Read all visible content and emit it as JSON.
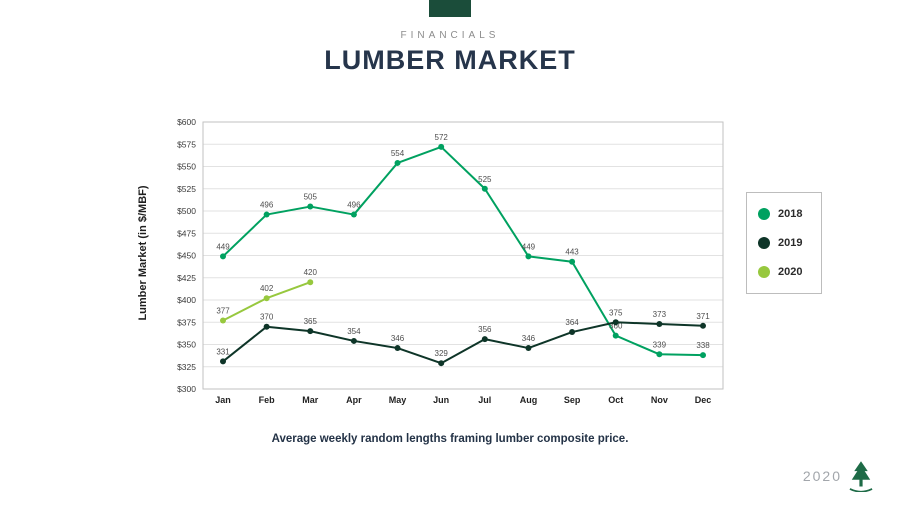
{
  "header": {
    "eyebrow": "FINANCIALS",
    "title": "LUMBER MARKET"
  },
  "chart_data": {
    "type": "line",
    "title": "Lumber Market",
    "categories": [
      "Jan",
      "Feb",
      "Mar",
      "Apr",
      "May",
      "Jun",
      "Jul",
      "Aug",
      "Sep",
      "Oct",
      "Nov",
      "Dec"
    ],
    "series": [
      {
        "name": "2018",
        "color": "#00A160",
        "values": [
          449,
          496,
          505,
          496,
          554,
          572,
          525,
          449,
          443,
          360,
          339,
          338
        ]
      },
      {
        "name": "2019",
        "color": "#0E3528",
        "values": [
          331,
          370,
          365,
          354,
          346,
          329,
          356,
          346,
          364,
          375,
          373,
          371
        ]
      },
      {
        "name": "2020",
        "color": "#97C83E",
        "values": [
          377,
          402,
          420,
          null,
          null,
          null,
          null,
          null,
          null,
          null,
          null,
          null
        ]
      }
    ],
    "xlabel": "",
    "ylabel": "Lumber Market  (in $/MBF)",
    "ylim": [
      300,
      600
    ],
    "ytick_step": 25,
    "y_tick_prefix": "$",
    "grid": true,
    "legend_position": "right"
  },
  "caption": "Average weekly random lengths framing lumber composite price.",
  "footer": {
    "year": "2020"
  },
  "colors": {
    "brand_green": "#1B4D3A",
    "title_navy": "#26354B",
    "grid_line": "#E2E2E2",
    "plot_border": "#C2C2C2",
    "tree_logo_green": "#1E6B47"
  },
  "icons": {
    "tree_logo": "tree-logo-icon"
  }
}
